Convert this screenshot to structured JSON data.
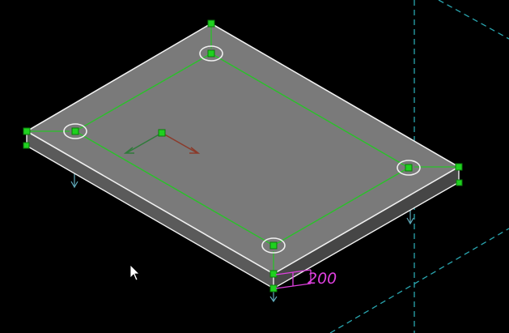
{
  "viewport": {
    "background": "#000000",
    "colors": {
      "slab_top": "#7a7a7a",
      "slab_front": "#5a5a5a",
      "slab_side": "#464646",
      "edge_highlight": "#f0f0f0",
      "grip": "#1fd11f",
      "grip_outline": "#0b7a0b",
      "rebar_outline": "#29c229",
      "axis_x": "#8b3a2a",
      "axis_y": "#2f7a3a",
      "grid_line": "#2aa6b0",
      "load_arrow": "#5fa8b8",
      "dimension": "#e040e0"
    }
  },
  "dimension": {
    "text": "200"
  },
  "icons": {
    "cursor": "mouse-pointer-icon",
    "ucs": "ucs-axis-icon"
  }
}
